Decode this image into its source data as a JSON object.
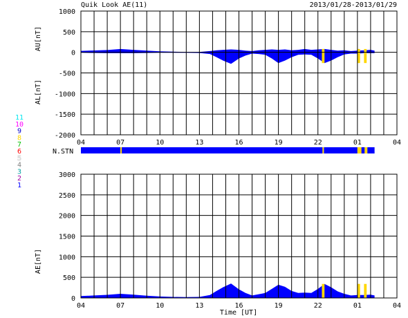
{
  "chart_data": [
    {
      "type": "area",
      "title": "Quik Look AE(11)",
      "date_range": "2013/01/28-2013/01/29",
      "ylabel_top": "AU[nT]",
      "ylabel_bottom": "AL[nT]",
      "ylim": [
        -2000,
        1000
      ],
      "yticks": [
        "1000",
        "500",
        "0",
        "-500",
        "-1000",
        "-1500",
        "-2000"
      ],
      "xticks": [
        "04",
        "07",
        "10",
        "13",
        "16",
        "19",
        "22",
        "01",
        "04"
      ],
      "xlim_hours": [
        4,
        28
      ],
      "grid": true,
      "series": [
        {
          "color": "#0000ff",
          "x": [
            4,
            5,
            6,
            7,
            8,
            9,
            10,
            11,
            12,
            13,
            13.8,
            14.3,
            14.8,
            15.4,
            16,
            16.5,
            17,
            17.5,
            18,
            18.5,
            19,
            19.5,
            20,
            20.5,
            21,
            21.5,
            22,
            22.5,
            23,
            23.5,
            24,
            24.5,
            25,
            25.5,
            26,
            26.3
          ],
          "au": [
            35,
            45,
            55,
            80,
            60,
            40,
            25,
            15,
            10,
            10,
            30,
            50,
            60,
            70,
            60,
            40,
            30,
            50,
            60,
            70,
            60,
            70,
            50,
            60,
            80,
            60,
            70,
            80,
            60,
            40,
            50,
            30,
            40,
            50,
            60,
            40
          ],
          "al": [
            -10,
            -15,
            -20,
            -20,
            -20,
            -15,
            -10,
            -10,
            -10,
            -15,
            -40,
            -120,
            -200,
            -280,
            -150,
            -80,
            -30,
            -40,
            -60,
            -150,
            -260,
            -200,
            -120,
            -60,
            -50,
            -60,
            -150,
            -260,
            -200,
            -120,
            -50,
            -30,
            -30,
            -20,
            -20,
            -20
          ]
        }
      ],
      "highlights": [
        {
          "x": [
            22.3,
            22.5
          ],
          "color": "#ffd700"
        },
        {
          "x": [
            25.0,
            25.2
          ],
          "color": "#ffd700"
        },
        {
          "x": [
            25.5,
            25.7
          ],
          "color": "#ffd700"
        }
      ]
    },
    {
      "type": "bar",
      "label": "N.STN",
      "color": "#0000ff",
      "segments_hours": [
        [
          4,
          7.0
        ],
        [
          7.1,
          22.35
        ],
        [
          22.45,
          25.0
        ],
        [
          25.3,
          25.55
        ],
        [
          25.75,
          26.3
        ]
      ],
      "highlights": [
        {
          "x": [
            7.0,
            7.1
          ],
          "color": "#ffd700"
        },
        {
          "x": [
            22.35,
            22.45
          ],
          "color": "#ffd700"
        },
        {
          "x": [
            25.0,
            25.3
          ],
          "color": "#ffd700"
        },
        {
          "x": [
            25.55,
            25.75
          ],
          "color": "#ffd700"
        }
      ]
    },
    {
      "type": "area",
      "ylabel": "AE[nT]",
      "xlabel": "Time [UT]",
      "ylim": [
        0,
        3000
      ],
      "yticks": [
        "3000",
        "2500",
        "2000",
        "1500",
        "1000",
        "500",
        "0"
      ],
      "xticks": [
        "04",
        "07",
        "10",
        "13",
        "16",
        "19",
        "22",
        "01",
        "04"
      ],
      "xlim_hours": [
        4,
        28
      ],
      "grid": true,
      "series": [
        {
          "color": "#0000ff",
          "x": [
            4,
            5,
            6,
            7,
            8,
            9,
            10,
            11,
            12,
            13,
            13.8,
            14.3,
            14.8,
            15.4,
            16,
            16.5,
            17,
            17.5,
            18,
            18.5,
            19,
            19.5,
            20,
            20.5,
            21,
            21.5,
            22,
            22.5,
            23,
            23.5,
            24,
            24.5,
            25,
            25.5,
            26,
            26.3
          ],
          "values": [
            45,
            60,
            75,
            100,
            80,
            55,
            35,
            25,
            20,
            25,
            70,
            170,
            260,
            350,
            210,
            120,
            60,
            90,
            120,
            220,
            320,
            270,
            170,
            120,
            130,
            120,
            220,
            340,
            260,
            160,
            100,
            60,
            70,
            70,
            80,
            60
          ]
        }
      ],
      "highlights": [
        {
          "x": [
            22.3,
            22.5
          ],
          "color": "#ffd700"
        },
        {
          "x": [
            25.0,
            25.2
          ],
          "color": "#ffd700"
        },
        {
          "x": [
            25.5,
            25.7
          ],
          "color": "#ffd700"
        }
      ]
    }
  ],
  "legend": {
    "items": [
      {
        "label": "11",
        "color": "#00e5ee"
      },
      {
        "label": "10",
        "color": "#ff00ff"
      },
      {
        "label": "9",
        "color": "#0000cd"
      },
      {
        "label": "8",
        "color": "#ffd700"
      },
      {
        "label": "7",
        "color": "#00c000"
      },
      {
        "label": "6",
        "color": "#ff0000"
      },
      {
        "label": "5",
        "color": "#ffffff"
      },
      {
        "label": "4",
        "color": "#808080"
      },
      {
        "label": "3",
        "color": "#00a0a0"
      },
      {
        "label": "2",
        "color": "#a000a0"
      },
      {
        "label": "1",
        "color": "#0000ff"
      }
    ]
  }
}
